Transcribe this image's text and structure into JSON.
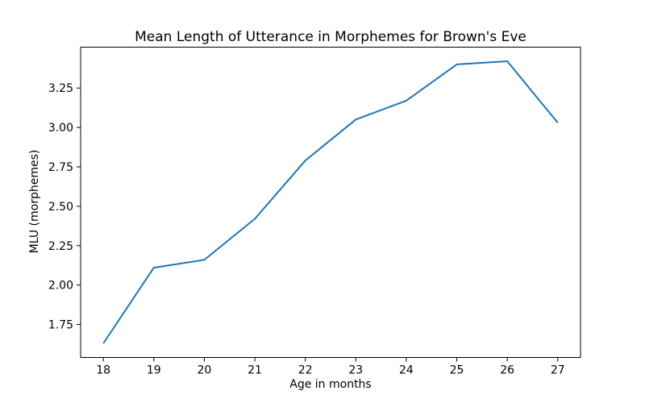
{
  "chart_data": {
    "type": "line",
    "title": "Mean Length of Utterance in Morphemes for Brown's Eve",
    "xlabel": "Age in months",
    "ylabel": "MLU (morphemes)",
    "x": [
      18,
      19,
      20,
      21,
      22,
      23,
      24,
      25,
      26,
      27
    ],
    "y": [
      1.63,
      2.11,
      2.16,
      2.42,
      2.79,
      3.05,
      3.17,
      3.4,
      3.42,
      3.03
    ],
    "xticks": [
      18,
      19,
      20,
      21,
      22,
      23,
      24,
      25,
      26,
      27
    ],
    "yticks": [
      1.75,
      2.0,
      2.25,
      2.5,
      2.75,
      3.0,
      3.25
    ],
    "ytick_labels": [
      "1.75",
      "2.00",
      "2.25",
      "2.50",
      "2.75",
      "3.00",
      "3.25"
    ],
    "xlim": [
      17.55,
      27.45
    ],
    "ylim": [
      1.5405,
      3.5095
    ],
    "line_color": "#1f77b4",
    "axis_color": "#000000",
    "background_color": "#ffffff",
    "grid": false,
    "legend": "none"
  }
}
